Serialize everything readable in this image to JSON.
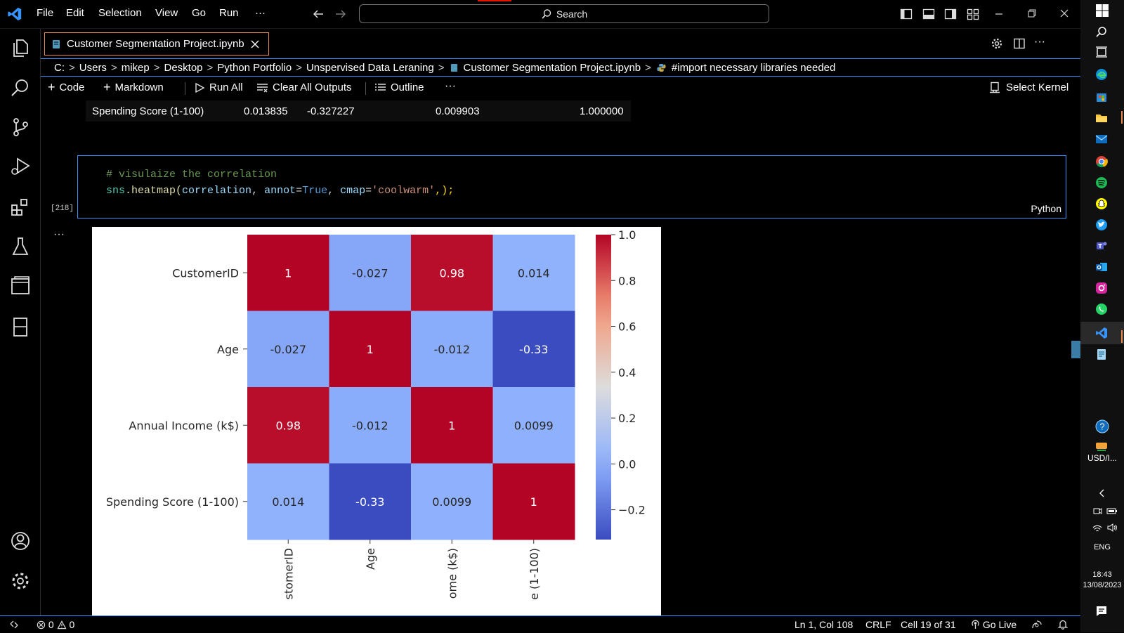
{
  "menu": [
    "File",
    "Edit",
    "Selection",
    "View",
    "Go",
    "Run",
    "···"
  ],
  "search": {
    "label": "Search"
  },
  "tab": {
    "title": "Customer Segmentation Project.ipynb"
  },
  "breadcrumb": [
    "C:",
    "Users",
    "mikep",
    "Desktop",
    "Python Portfolio",
    "Unspervised Data Leraning",
    "Customer Segmentation Project.ipynb",
    "#import necessary libraries needed"
  ],
  "toolbar": {
    "code": "Code",
    "markdown": "Markdown",
    "run_all": "Run All",
    "clear_outputs": "Clear All Outputs",
    "outline": "Outline",
    "more": "···",
    "select_kernel": "Select Kernel"
  },
  "prev_output_row": [
    "Spending Score (1-100)",
    "0.013835",
    "-0.327227",
    "0.009903",
    "1.000000"
  ],
  "cell": {
    "comment": "# visulaize the correlation",
    "code_parts": [
      "sns",
      ".heatmap(",
      "correlation",
      ", ",
      "annot",
      "=",
      "True",
      ", ",
      "cmap",
      "=",
      "'coolwarm'",
      ",);"
    ],
    "exec_count": "[218]",
    "language": "Python",
    "output_more": "···"
  },
  "chart_data": {
    "type": "heatmap",
    "rows": [
      "CustomerID",
      "Age",
      "Annual Income (k$)",
      "Spending Score (1-100)"
    ],
    "cols_visible": [
      "stomerID",
      "Age",
      "ome (k$)",
      "e (1-100)"
    ],
    "values": [
      [
        1,
        -0.027,
        0.98,
        0.014
      ],
      [
        -0.027,
        1,
        -0.012,
        -0.33
      ],
      [
        0.98,
        -0.012,
        1,
        0.0099
      ],
      [
        0.014,
        -0.33,
        0.0099,
        1
      ]
    ],
    "annotations": [
      [
        "1",
        "-0.027",
        "0.98",
        "0.014"
      ],
      [
        "-0.027",
        "1",
        "-0.012",
        "-0.33"
      ],
      [
        "0.98",
        "-0.012",
        "1",
        "0.0099"
      ],
      [
        "0.014",
        "-0.33",
        "0.0099",
        "1"
      ]
    ],
    "cmap": "coolwarm",
    "vmin": -0.33,
    "vmax": 1.0,
    "colorbar_ticks": [
      "1.0",
      "0.8",
      "0.6",
      "0.4",
      "0.2",
      "0.0",
      "−0.2"
    ],
    "colorbar_tick_values": [
      1.0,
      0.8,
      0.6,
      0.4,
      0.2,
      0.0,
      -0.2
    ]
  },
  "status": {
    "errors": "0",
    "warnings": "0",
    "position": "Ln 1, Col 108",
    "eol": "CRLF",
    "cell": "Cell 19 of 31",
    "golive": "Go Live"
  },
  "taskbar": {
    "ticker": "USD/I...",
    "lang": "ENG",
    "time": "18:43",
    "date": "13/08/2023"
  },
  "colors": {
    "accent": "#3794ff",
    "tab_border": "#e88a4d",
    "keyword": "#569cd6",
    "string": "#ce9178",
    "comment": "#6a9955",
    "func": "#dcdcaa",
    "var": "#9cdcfe"
  }
}
